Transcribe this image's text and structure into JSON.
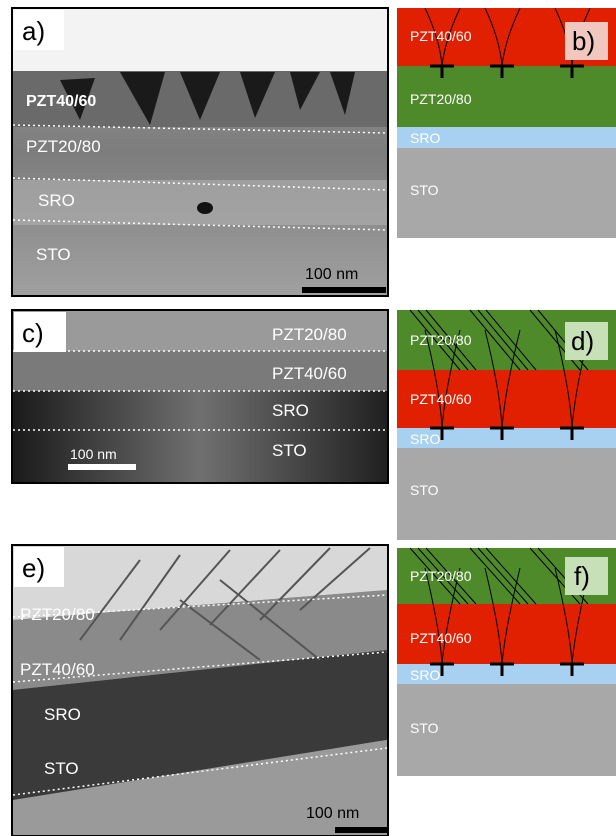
{
  "panels": [
    {
      "label": "a)",
      "layers": [
        "PZT40/60",
        "PZT20/80",
        "SRO",
        "STO"
      ],
      "scale_bar": "100 nm"
    },
    {
      "label": "b)",
      "layers": [
        "PZT40/60",
        "PZT20/80",
        "SRO",
        "STO"
      ]
    },
    {
      "label": "c)",
      "layers": [
        "PZT20/80",
        "PZT40/60",
        "SRO",
        "STO"
      ],
      "scale_bar": "100 nm"
    },
    {
      "label": "d)",
      "layers": [
        "PZT20/80",
        "PZT40/60",
        "SRO",
        "STO"
      ]
    },
    {
      "label": "e)",
      "layers": [
        "PZT20/80",
        "PZT40/60",
        "SRO",
        "STO"
      ],
      "scale_bar": "100 nm"
    },
    {
      "label": "f)",
      "layers": [
        "PZT20/80",
        "PZT40/60",
        "SRO",
        "STO"
      ]
    }
  ]
}
